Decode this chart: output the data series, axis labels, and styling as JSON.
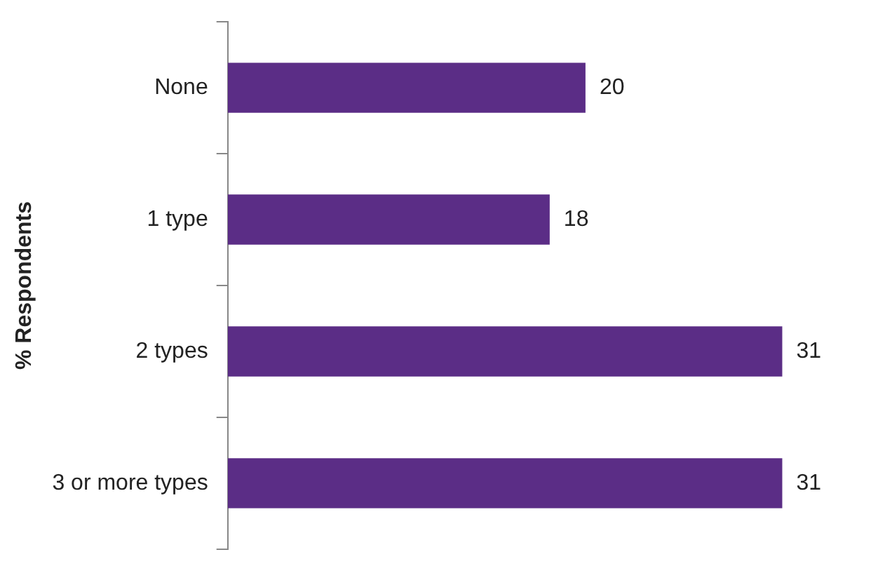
{
  "chart_data": {
    "type": "bar",
    "orientation": "horizontal",
    "ylabel": "% Respondents",
    "categories": [
      "None",
      "1 type",
      "2 types",
      "3 or more types"
    ],
    "values": [
      20,
      18,
      31,
      31
    ],
    "color": "#5b2d86",
    "data_labels": true,
    "legend": false
  }
}
